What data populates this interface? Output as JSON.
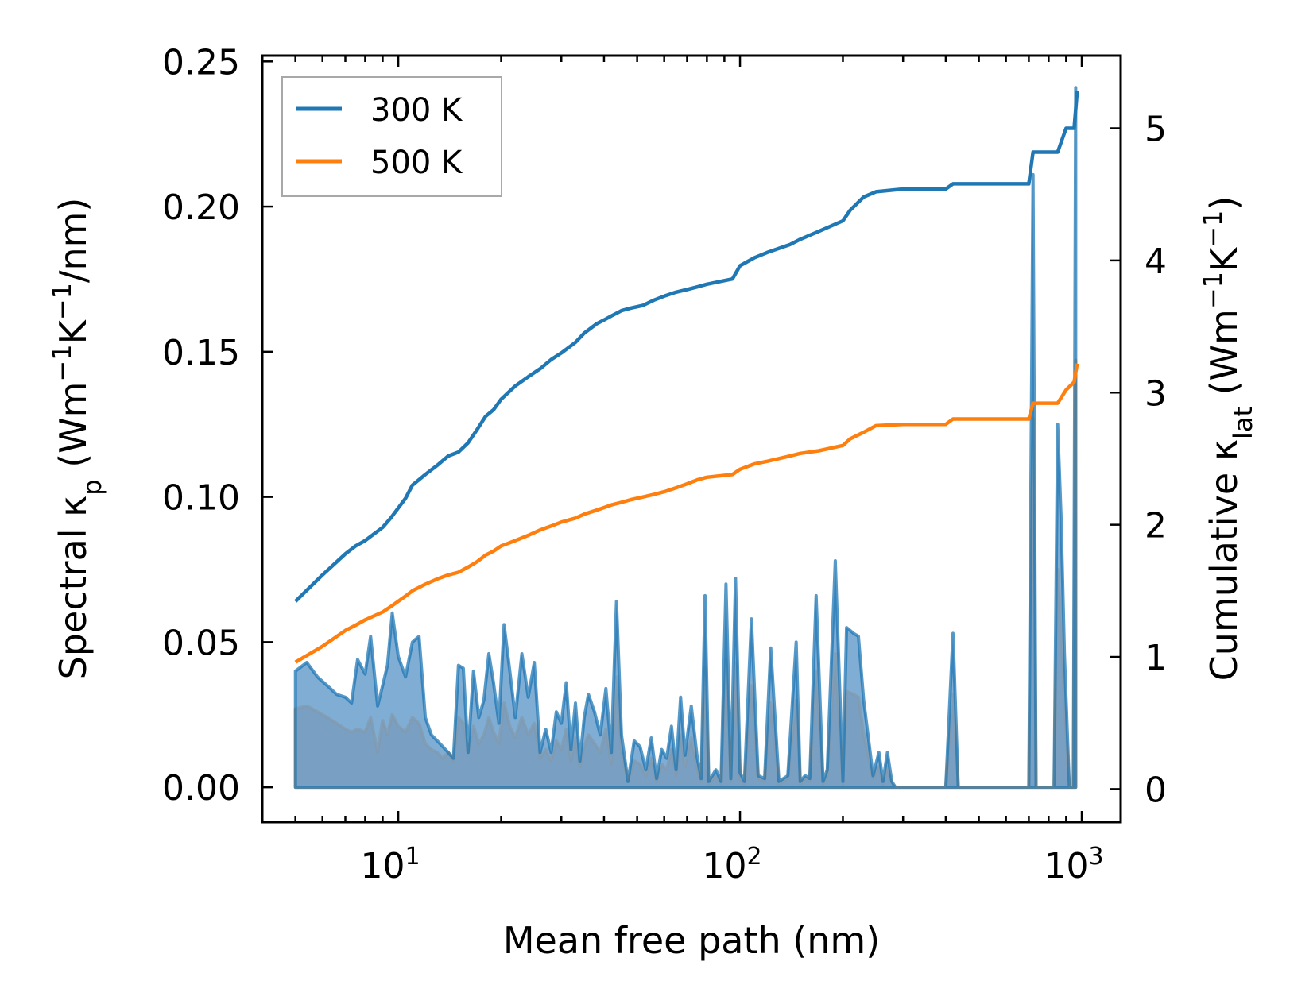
{
  "chart_data": {
    "type": "line",
    "title": "",
    "xlabel": "Mean free path (nm)",
    "xscale": "log",
    "xlim": [
      4.0,
      1300
    ],
    "xticks": [
      {
        "value": 10,
        "base": "10",
        "exp": "1"
      },
      {
        "value": 100,
        "base": "10",
        "exp": "2"
      },
      {
        "value": 1000,
        "base": "10",
        "exp": "3"
      }
    ],
    "ylabel_left": {
      "main": "Spectral κ",
      "sub": "p",
      "unit_a": " (Wm",
      "sup1": "−1",
      "unit_b": "K",
      "sup2": "−1",
      "unit_c": "/nm)"
    },
    "ylim_left": [
      -0.012,
      0.252
    ],
    "yticks_left": [
      "0.00",
      "0.05",
      "0.10",
      "0.15",
      "0.20",
      "0.25"
    ],
    "ylabel_right": {
      "main": "Cumulative κ",
      "sub": "lat",
      "unit_a": " (Wm",
      "sup1": "−1",
      "unit_b": "K",
      "sup2": "−1",
      "unit_c": ")"
    },
    "ylim_right": [
      -0.25,
      5.55
    ],
    "yticks_right": [
      "0",
      "1",
      "2",
      "3",
      "4",
      "5"
    ],
    "legend": {
      "position": "top-left",
      "entries": [
        "300 K",
        "500 K"
      ]
    },
    "colors": {
      "300 K": "#1f77b4",
      "500 K": "#ff7f0e",
      "spectral_fill_300": "#6a9fcc",
      "spectral_fill_500": "#c89a78"
    },
    "spectral_x": [
      5.0,
      5.4,
      5.8,
      6.2,
      6.6,
      7.0,
      7.3,
      7.6,
      8.0,
      8.3,
      8.7,
      9.0,
      9.3,
      9.6,
      10.0,
      10.5,
      11.0,
      11.5,
      12.0,
      12.5,
      13.0,
      13.5,
      14.0,
      14.5,
      15.0,
      15.5,
      16.0,
      16.6,
      17.2,
      17.8,
      18.4,
      19.0,
      19.7,
      20.4,
      21.2,
      22.0,
      23.0,
      24.0,
      25.0,
      26.0,
      27.0,
      28.0,
      29.0,
      30.0,
      31.0,
      32.0,
      33.0,
      34.0,
      35.0,
      36.0,
      37.5,
      39.0,
      40.5,
      42.0,
      43.5,
      45.0,
      47.0,
      49.0,
      51.0,
      53.0,
      55.0,
      57.0,
      59.0,
      61.0,
      63.0,
      65.0,
      67.0,
      69.0,
      72.0,
      75.0,
      77.0,
      79.0,
      81.0,
      85.0,
      88.0,
      91.0,
      94.0,
      97.0,
      100.0,
      103.0,
      108.0,
      113.0,
      118.0,
      123.0,
      130.0,
      138.0,
      146.0,
      150.0,
      155.0,
      160.0,
      167.0,
      175.0,
      180.0,
      190.0,
      200.0,
      205.0,
      215.0,
      222.0,
      230.0,
      238.0,
      245.0,
      255.0,
      262.0,
      270.0,
      278.0,
      285.0,
      300.0,
      400.0,
      420.0,
      435.0,
      450.0,
      700.0,
      720.0,
      735.0,
      750.0,
      830.0,
      850.0,
      870.0,
      890.0,
      920.0,
      945.0,
      960.0
    ],
    "spectral_300": [
      0.04,
      0.043,
      0.038,
      0.035,
      0.032,
      0.031,
      0.029,
      0.044,
      0.039,
      0.052,
      0.028,
      0.035,
      0.042,
      0.06,
      0.045,
      0.038,
      0.05,
      0.052,
      0.024,
      0.018,
      0.016,
      0.014,
      0.012,
      0.01,
      0.042,
      0.041,
      0.012,
      0.04,
      0.024,
      0.03,
      0.046,
      0.036,
      0.022,
      0.056,
      0.04,
      0.024,
      0.046,
      0.031,
      0.043,
      0.012,
      0.02,
      0.012,
      0.026,
      0.022,
      0.036,
      0.013,
      0.029,
      0.009,
      0.024,
      0.032,
      0.026,
      0.018,
      0.034,
      0.012,
      0.064,
      0.018,
      0.002,
      0.016,
      0.014,
      0.006,
      0.017,
      0.003,
      0.013,
      0.01,
      0.021,
      0.006,
      0.031,
      0.011,
      0.028,
      0.01,
      0.003,
      0.066,
      0.002,
      0.006,
      0.002,
      0.07,
      0.003,
      0.072,
      0.005,
      0.002,
      0.058,
      0.004,
      0.003,
      0.048,
      0.002,
      0.004,
      0.05,
      0.002,
      0.004,
      0.003,
      0.066,
      0.002,
      0.006,
      0.078,
      0.002,
      0.055,
      0.053,
      0.052,
      0.03,
      0.016,
      0.004,
      0.012,
      0.002,
      0.012,
      0.002,
      0.0,
      0.0,
      0.0,
      0.053,
      0.0,
      0.0,
      0.0,
      0.211,
      0.0,
      0.0,
      0.0,
      0.125,
      0.093,
      0.046,
      0.0,
      0.0,
      0.241
    ],
    "spectral_500": [
      0.027,
      0.028,
      0.026,
      0.024,
      0.022,
      0.02,
      0.019,
      0.02,
      0.019,
      0.024,
      0.012,
      0.023,
      0.018,
      0.025,
      0.021,
      0.019,
      0.024,
      0.022,
      0.015,
      0.013,
      0.012,
      0.01,
      0.012,
      0.009,
      0.024,
      0.022,
      0.012,
      0.021,
      0.015,
      0.018,
      0.024,
      0.019,
      0.015,
      0.029,
      0.021,
      0.017,
      0.024,
      0.018,
      0.022,
      0.01,
      0.013,
      0.009,
      0.016,
      0.013,
      0.02,
      0.009,
      0.017,
      0.007,
      0.014,
      0.018,
      0.015,
      0.012,
      0.02,
      0.008,
      0.038,
      0.012,
      0.002,
      0.009,
      0.008,
      0.004,
      0.01,
      0.002,
      0.008,
      0.006,
      0.013,
      0.004,
      0.018,
      0.007,
      0.017,
      0.006,
      0.002,
      0.041,
      0.001,
      0.004,
      0.001,
      0.044,
      0.002,
      0.043,
      0.003,
      0.001,
      0.035,
      0.003,
      0.002,
      0.029,
      0.001,
      0.003,
      0.03,
      0.001,
      0.003,
      0.002,
      0.04,
      0.001,
      0.004,
      0.046,
      0.001,
      0.033,
      0.032,
      0.031,
      0.018,
      0.01,
      0.003,
      0.007,
      0.001,
      0.007,
      0.001,
      0.0,
      0.0,
      0.0,
      0.032,
      0.0,
      0.0,
      0.0,
      0.127,
      0.0,
      0.0,
      0.0,
      0.075,
      0.056,
      0.028,
      0.0,
      0.0,
      0.147
    ],
    "cumulative_300": {
      "x": [
        5.0,
        6.0,
        7.0,
        7.5,
        8.0,
        9.0,
        9.5,
        10.5,
        11.0,
        12.0,
        13.0,
        14.0,
        15.0,
        16.0,
        17.0,
        18.0,
        19.0,
        20.0,
        22.0,
        24.0,
        26.0,
        28.0,
        30.0,
        33.0,
        35.0,
        38.0,
        40.0,
        42.0,
        45.0,
        48.0,
        52.0,
        56.0,
        60.0,
        65.0,
        70.0,
        75.0,
        80.0,
        95.0,
        100.0,
        110.0,
        120.0,
        140.0,
        150.0,
        170.0,
        200.0,
        210.0,
        230.0,
        250.0,
        300.0,
        400.0,
        420.0,
        700.0,
        720.0,
        850.0,
        900.0,
        950.0,
        970.0
      ],
      "y": [
        1.42,
        1.62,
        1.78,
        1.84,
        1.88,
        1.98,
        2.05,
        2.2,
        2.3,
        2.38,
        2.45,
        2.52,
        2.55,
        2.62,
        2.72,
        2.82,
        2.87,
        2.95,
        3.05,
        3.12,
        3.18,
        3.25,
        3.3,
        3.38,
        3.45,
        3.52,
        3.55,
        3.58,
        3.62,
        3.64,
        3.66,
        3.7,
        3.73,
        3.76,
        3.78,
        3.8,
        3.82,
        3.86,
        3.96,
        4.02,
        4.06,
        4.12,
        4.16,
        4.22,
        4.3,
        4.38,
        4.48,
        4.52,
        4.54,
        4.54,
        4.58,
        4.58,
        4.82,
        4.82,
        5.0,
        5.0,
        5.28
      ]
    },
    "cumulative_500": {
      "x": [
        5.0,
        6.0,
        7.0,
        7.5,
        8.0,
        9.0,
        9.5,
        10.5,
        11.0,
        12.0,
        13.0,
        14.0,
        15.0,
        16.0,
        17.0,
        18.0,
        19.0,
        20.0,
        22.0,
        24.0,
        26.0,
        28.0,
        30.0,
        33.0,
        35.0,
        38.0,
        40.0,
        42.0,
        45.0,
        48.0,
        52.0,
        56.0,
        60.0,
        65.0,
        70.0,
        75.0,
        80.0,
        95.0,
        100.0,
        110.0,
        120.0,
        140.0,
        150.0,
        170.0,
        200.0,
        210.0,
        230.0,
        250.0,
        300.0,
        400.0,
        420.0,
        700.0,
        720.0,
        850.0,
        900.0,
        950.0,
        970.0
      ],
      "y": [
        0.96,
        1.08,
        1.2,
        1.24,
        1.28,
        1.34,
        1.38,
        1.46,
        1.5,
        1.55,
        1.59,
        1.62,
        1.64,
        1.68,
        1.72,
        1.77,
        1.8,
        1.84,
        1.88,
        1.92,
        1.96,
        1.99,
        2.02,
        2.05,
        2.08,
        2.11,
        2.13,
        2.15,
        2.17,
        2.19,
        2.21,
        2.23,
        2.25,
        2.28,
        2.31,
        2.34,
        2.36,
        2.38,
        2.42,
        2.46,
        2.48,
        2.52,
        2.54,
        2.56,
        2.6,
        2.65,
        2.7,
        2.75,
        2.76,
        2.76,
        2.8,
        2.8,
        2.92,
        2.92,
        3.02,
        3.08,
        3.22
      ]
    }
  }
}
